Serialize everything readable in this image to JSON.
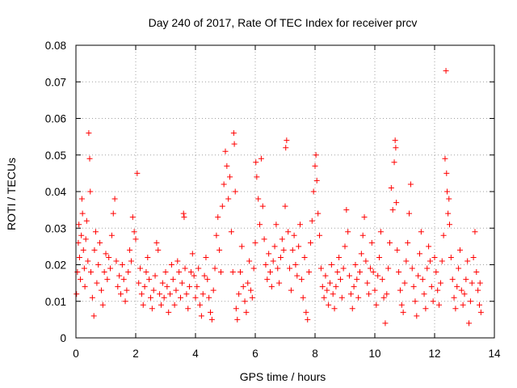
{
  "chart_data": {
    "type": "scatter",
    "title": "Day 240 of 2017, Rate Of TEC Index for receiver prcv",
    "xlabel": "GPS time / hours",
    "ylabel": "ROTI / TECUs",
    "xlim": [
      0,
      14
    ],
    "ylim": [
      0,
      0.08
    ],
    "xticks": [
      0,
      2,
      4,
      6,
      8,
      10,
      12,
      14
    ],
    "xtick_labels": [
      "0",
      "2",
      "4",
      "6",
      "8",
      "10",
      "12",
      "14"
    ],
    "yticks": [
      0,
      0.01,
      0.02,
      0.03,
      0.04,
      0.05,
      0.06,
      0.07,
      0.08
    ],
    "ytick_labels": [
      "0",
      "0.01",
      "0.02",
      "0.03",
      "0.04",
      "0.05",
      "0.06",
      "0.07",
      "0.08"
    ],
    "grid": true,
    "marker": "+",
    "color": "#ff0000",
    "series": [
      {
        "name": "ROTI",
        "points": [
          [
            0.02,
            0.012
          ],
          [
            0.05,
            0.018
          ],
          [
            0.08,
            0.026
          ],
          [
            0.1,
            0.031
          ],
          [
            0.12,
            0.022
          ],
          [
            0.15,
            0.016
          ],
          [
            0.18,
            0.028
          ],
          [
            0.2,
            0.038
          ],
          [
            0.22,
            0.034
          ],
          [
            0.25,
            0.024
          ],
          [
            0.28,
            0.019
          ],
          [
            0.3,
            0.014
          ],
          [
            0.33,
            0.027
          ],
          [
            0.36,
            0.032
          ],
          [
            0.4,
            0.021
          ],
          [
            0.43,
            0.056
          ],
          [
            0.46,
            0.049
          ],
          [
            0.48,
            0.04
          ],
          [
            0.5,
            0.018
          ],
          [
            0.55,
            0.011
          ],
          [
            0.6,
            0.006
          ],
          [
            0.62,
            0.024
          ],
          [
            0.66,
            0.029
          ],
          [
            0.7,
            0.015
          ],
          [
            0.75,
            0.02
          ],
          [
            0.8,
            0.026
          ],
          [
            0.85,
            0.013
          ],
          [
            0.9,
            0.009
          ],
          [
            0.95,
            0.018
          ],
          [
            1.0,
            0.023
          ],
          [
            1.05,
            0.016
          ],
          [
            1.1,
            0.022
          ],
          [
            1.15,
            0.019
          ],
          [
            1.2,
            0.028
          ],
          [
            1.25,
            0.034
          ],
          [
            1.3,
            0.038
          ],
          [
            1.35,
            0.021
          ],
          [
            1.4,
            0.014
          ],
          [
            1.45,
            0.017
          ],
          [
            1.5,
            0.012
          ],
          [
            1.55,
            0.02
          ],
          [
            1.6,
            0.016
          ],
          [
            1.65,
            0.01
          ],
          [
            1.7,
            0.013
          ],
          [
            1.75,
            0.018
          ],
          [
            1.8,
            0.024
          ],
          [
            1.85,
            0.021
          ],
          [
            1.9,
            0.033
          ],
          [
            1.95,
            0.029
          ],
          [
            2.0,
            0.027
          ],
          [
            2.05,
            0.045
          ],
          [
            2.1,
            0.015
          ],
          [
            2.15,
            0.019
          ],
          [
            2.2,
            0.012
          ],
          [
            2.25,
            0.009
          ],
          [
            2.3,
            0.014
          ],
          [
            2.35,
            0.018
          ],
          [
            2.4,
            0.022
          ],
          [
            2.45,
            0.016
          ],
          [
            2.5,
            0.011
          ],
          [
            2.55,
            0.008
          ],
          [
            2.6,
            0.013
          ],
          [
            2.65,
            0.017
          ],
          [
            2.7,
            0.026
          ],
          [
            2.75,
            0.024
          ],
          [
            2.8,
            0.012
          ],
          [
            2.85,
            0.009
          ],
          [
            2.9,
            0.015
          ],
          [
            2.95,
            0.011
          ],
          [
            3.0,
            0.018
          ],
          [
            3.05,
            0.014
          ],
          [
            3.1,
            0.007
          ],
          [
            3.15,
            0.012
          ],
          [
            3.2,
            0.02
          ],
          [
            3.25,
            0.016
          ],
          [
            3.3,
            0.009
          ],
          [
            3.35,
            0.013
          ],
          [
            3.4,
            0.021
          ],
          [
            3.45,
            0.018
          ],
          [
            3.5,
            0.011
          ],
          [
            3.55,
            0.015
          ],
          [
            3.6,
            0.034
          ],
          [
            3.62,
            0.033
          ],
          [
            3.65,
            0.019
          ],
          [
            3.7,
            0.012
          ],
          [
            3.75,
            0.008
          ],
          [
            3.8,
            0.014
          ],
          [
            3.85,
            0.018
          ],
          [
            3.9,
            0.023
          ],
          [
            3.95,
            0.017
          ],
          [
            4.0,
            0.011
          ],
          [
            4.05,
            0.014
          ],
          [
            4.1,
            0.019
          ],
          [
            4.15,
            0.009
          ],
          [
            4.2,
            0.006
          ],
          [
            4.25,
            0.012
          ],
          [
            4.3,
            0.017
          ],
          [
            4.35,
            0.022
          ],
          [
            4.4,
            0.016
          ],
          [
            4.45,
            0.011
          ],
          [
            4.5,
            0.007
          ],
          [
            4.55,
            0.005
          ],
          [
            4.6,
            0.013
          ],
          [
            4.65,
            0.019
          ],
          [
            4.7,
            0.028
          ],
          [
            4.75,
            0.033
          ],
          [
            4.8,
            0.024
          ],
          [
            4.85,
            0.018
          ],
          [
            4.9,
            0.036
          ],
          [
            4.95,
            0.042
          ],
          [
            5.0,
            0.051
          ],
          [
            5.05,
            0.047
          ],
          [
            5.1,
            0.038
          ],
          [
            5.15,
            0.044
          ],
          [
            5.2,
            0.029
          ],
          [
            5.25,
            0.018
          ],
          [
            5.28,
            0.056
          ],
          [
            5.3,
            0.053
          ],
          [
            5.33,
            0.04
          ],
          [
            5.36,
            0.008
          ],
          [
            5.4,
            0.005
          ],
          [
            5.45,
            0.012
          ],
          [
            5.5,
            0.018
          ],
          [
            5.55,
            0.025
          ],
          [
            5.6,
            0.014
          ],
          [
            5.65,
            0.01
          ],
          [
            5.7,
            0.007
          ],
          [
            5.75,
            0.015
          ],
          [
            5.8,
            0.021
          ],
          [
            5.85,
            0.013
          ],
          [
            5.9,
            0.011
          ],
          [
            5.95,
            0.019
          ],
          [
            6.0,
            0.026
          ],
          [
            6.02,
            0.048
          ],
          [
            6.05,
            0.044
          ],
          [
            6.1,
            0.038
          ],
          [
            6.15,
            0.031
          ],
          [
            6.2,
            0.049
          ],
          [
            6.25,
            0.036
          ],
          [
            6.3,
            0.027
          ],
          [
            6.35,
            0.02
          ],
          [
            6.4,
            0.016
          ],
          [
            6.45,
            0.023
          ],
          [
            6.5,
            0.018
          ],
          [
            6.55,
            0.014
          ],
          [
            6.6,
            0.021
          ],
          [
            6.65,
            0.025
          ],
          [
            6.7,
            0.031
          ],
          [
            6.75,
            0.019
          ],
          [
            6.8,
            0.015
          ],
          [
            6.85,
            0.022
          ],
          [
            6.9,
            0.027
          ],
          [
            6.95,
            0.024
          ],
          [
            7.0,
            0.036
          ],
          [
            7.02,
            0.052
          ],
          [
            7.05,
            0.054
          ],
          [
            7.1,
            0.029
          ],
          [
            7.15,
            0.019
          ],
          [
            7.2,
            0.013
          ],
          [
            7.25,
            0.024
          ],
          [
            7.3,
            0.028
          ],
          [
            7.35,
            0.02
          ],
          [
            7.4,
            0.017
          ],
          [
            7.45,
            0.025
          ],
          [
            7.5,
            0.031
          ],
          [
            7.55,
            0.016
          ],
          [
            7.6,
            0.011
          ],
          [
            7.65,
            0.022
          ],
          [
            7.7,
            0.007
          ],
          [
            7.75,
            0.005
          ],
          [
            7.8,
            0.018
          ],
          [
            7.85,
            0.026
          ],
          [
            7.9,
            0.032
          ],
          [
            7.95,
            0.04
          ],
          [
            8.0,
            0.047
          ],
          [
            8.03,
            0.05
          ],
          [
            8.06,
            0.043
          ],
          [
            8.1,
            0.034
          ],
          [
            8.15,
            0.028
          ],
          [
            8.2,
            0.019
          ],
          [
            8.25,
            0.014
          ],
          [
            8.3,
            0.011
          ],
          [
            8.35,
            0.017
          ],
          [
            8.4,
            0.013
          ],
          [
            8.45,
            0.009
          ],
          [
            8.5,
            0.015
          ],
          [
            8.55,
            0.02
          ],
          [
            8.6,
            0.012
          ],
          [
            8.65,
            0.008
          ],
          [
            8.7,
            0.014
          ],
          [
            8.75,
            0.018
          ],
          [
            8.8,
            0.022
          ],
          [
            8.85,
            0.016
          ],
          [
            8.9,
            0.011
          ],
          [
            8.95,
            0.019
          ],
          [
            9.0,
            0.025
          ],
          [
            9.05,
            0.035
          ],
          [
            9.1,
            0.029
          ],
          [
            9.15,
            0.017
          ],
          [
            9.2,
            0.012
          ],
          [
            9.25,
            0.008
          ],
          [
            9.3,
            0.014
          ],
          [
            9.35,
            0.02
          ],
          [
            9.4,
            0.016
          ],
          [
            9.45,
            0.011
          ],
          [
            9.5,
            0.018
          ],
          [
            9.55,
            0.023
          ],
          [
            9.6,
            0.028
          ],
          [
            9.65,
            0.033
          ],
          [
            9.7,
            0.021
          ],
          [
            9.75,
            0.015
          ],
          [
            9.8,
            0.012
          ],
          [
            9.85,
            0.019
          ],
          [
            9.9,
            0.026
          ],
          [
            9.95,
            0.018
          ],
          [
            10.0,
            0.013
          ],
          [
            10.05,
            0.009
          ],
          [
            10.1,
            0.017
          ],
          [
            10.15,
            0.022
          ],
          [
            10.2,
            0.029
          ],
          [
            10.25,
            0.016
          ],
          [
            10.3,
            0.011
          ],
          [
            10.35,
            0.004
          ],
          [
            10.4,
            0.012
          ],
          [
            10.45,
            0.019
          ],
          [
            10.5,
            0.026
          ],
          [
            10.55,
            0.041
          ],
          [
            10.6,
            0.035
          ],
          [
            10.65,
            0.048
          ],
          [
            10.68,
            0.054
          ],
          [
            10.7,
            0.052
          ],
          [
            10.72,
            0.037
          ],
          [
            10.75,
            0.024
          ],
          [
            10.8,
            0.018
          ],
          [
            10.85,
            0.013
          ],
          [
            10.9,
            0.009
          ],
          [
            10.95,
            0.007
          ],
          [
            11.0,
            0.015
          ],
          [
            11.05,
            0.021
          ],
          [
            11.1,
            0.026
          ],
          [
            11.15,
            0.034
          ],
          [
            11.2,
            0.042
          ],
          [
            11.25,
            0.019
          ],
          [
            11.3,
            0.014
          ],
          [
            11.35,
            0.01
          ],
          [
            11.4,
            0.006
          ],
          [
            11.45,
            0.017
          ],
          [
            11.5,
            0.023
          ],
          [
            11.55,
            0.029
          ],
          [
            11.6,
            0.016
          ],
          [
            11.65,
            0.012
          ],
          [
            11.7,
            0.008
          ],
          [
            11.75,
            0.019
          ],
          [
            11.8,
            0.025
          ],
          [
            11.85,
            0.021
          ],
          [
            11.9,
            0.014
          ],
          [
            11.95,
            0.01
          ],
          [
            12.0,
            0.022
          ],
          [
            12.05,
            0.018
          ],
          [
            12.1,
            0.013
          ],
          [
            12.15,
            0.009
          ],
          [
            12.2,
            0.015
          ],
          [
            12.25,
            0.021
          ],
          [
            12.3,
            0.028
          ],
          [
            12.35,
            0.049
          ],
          [
            12.38,
            0.073
          ],
          [
            12.4,
            0.045
          ],
          [
            12.42,
            0.04
          ],
          [
            12.45,
            0.034
          ],
          [
            12.48,
            0.038
          ],
          [
            12.5,
            0.031
          ],
          [
            12.55,
            0.022
          ],
          [
            12.6,
            0.016
          ],
          [
            12.65,
            0.011
          ],
          [
            12.7,
            0.008
          ],
          [
            12.75,
            0.014
          ],
          [
            12.8,
            0.019
          ],
          [
            12.85,
            0.024
          ],
          [
            12.9,
            0.013
          ],
          [
            12.95,
            0.009
          ],
          [
            13.0,
            0.012
          ],
          [
            13.05,
            0.016
          ],
          [
            13.1,
            0.021
          ],
          [
            13.15,
            0.004
          ],
          [
            13.2,
            0.01
          ],
          [
            13.25,
            0.015
          ],
          [
            13.3,
            0.022
          ],
          [
            13.35,
            0.029
          ],
          [
            13.4,
            0.018
          ],
          [
            13.45,
            0.013
          ],
          [
            13.5,
            0.009
          ],
          [
            13.52,
            0.015
          ],
          [
            13.55,
            0.007
          ]
        ]
      }
    ]
  }
}
